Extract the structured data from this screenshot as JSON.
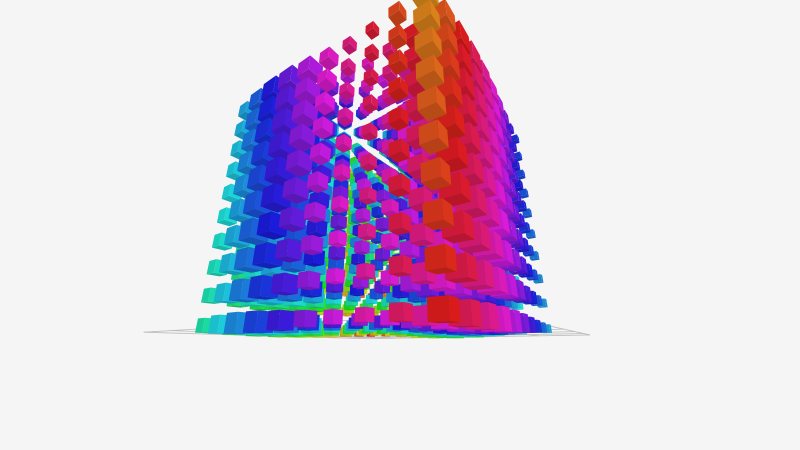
{
  "scene": {
    "background": "#f5f5f5",
    "grid_color": "#bdbdbd",
    "mark_shape": "cube",
    "color_mode": "hue-gradient"
  }
}
